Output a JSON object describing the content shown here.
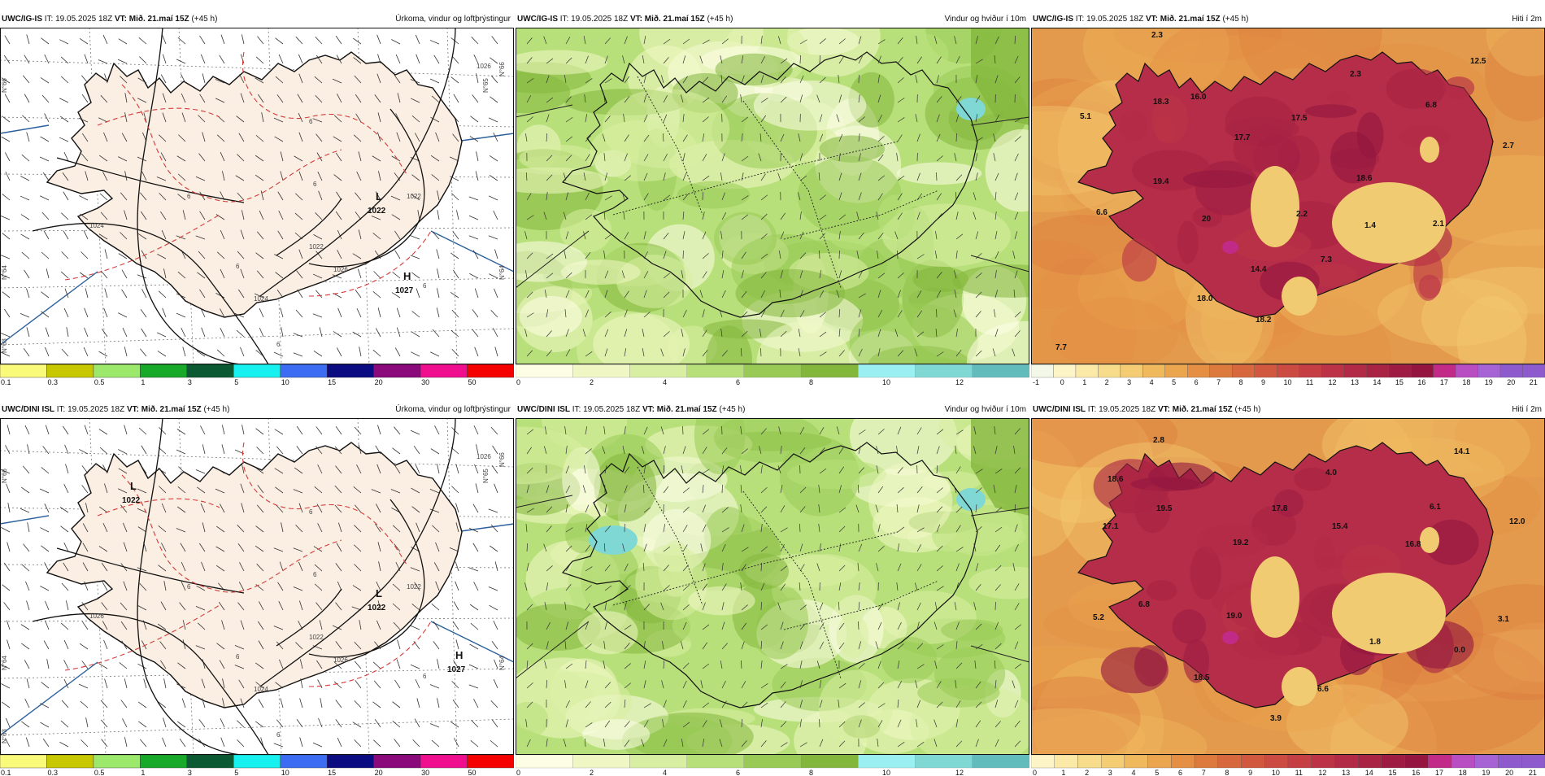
{
  "colors": {
    "land_precip": "#fbeee2",
    "sea": "#ffffff",
    "coast": "#111111",
    "isobar": "#111111",
    "isotherm": "#d33b3b",
    "front": "#2a5f9e"
  },
  "rows": [
    {
      "model": "UWC/IG-IS",
      "it": "IT: 19.05.2025 18Z",
      "vt_label": "VT:",
      "vt": "Mið. 21.maí 15Z",
      "lead": "(+45 h)",
      "precip": {
        "title": "Úrkoma, vindur og loftþrýstingur",
        "isobar_labels": [
          "1026",
          "1024",
          "1024",
          "1026",
          "1022",
          "1022"
        ],
        "isotherm_labels": [
          "6",
          "6",
          "6",
          "6",
          "6",
          "6"
        ],
        "pressure_centers": [
          {
            "type": "L",
            "value": "1022"
          },
          {
            "type": "H",
            "value": "1027"
          }
        ],
        "grid_labels": [
          "N°66",
          "N°64",
          "N°65",
          "N°63",
          "N°64",
          "N°66"
        ]
      },
      "wind": {
        "title": "Vindur og hviður í 10m"
      },
      "temp": {
        "title": "Hiti í 2m",
        "values": [
          "2.3",
          "18.3",
          "16.0",
          "5.1",
          "2.3",
          "17.5",
          "12.5",
          "6.8",
          "17.7",
          "2.7",
          "18.6",
          "19.4",
          "6.6",
          "2.2",
          "20",
          "1.4",
          "2.1",
          "7.3",
          "14.4",
          "18.0",
          "18.2",
          "7.7"
        ]
      }
    },
    {
      "model": "UWC/DINI ISL",
      "it": "IT: 19.05.2025 18Z",
      "vt_label": "VT:",
      "vt": "Mið. 21.maí 15Z",
      "lead": "(+45 h)",
      "precip": {
        "title": "Úrkoma, vindur og loftþrýstingur",
        "isobar_labels": [
          "1026",
          "1026",
          "1024",
          "1026",
          "1022",
          "1022"
        ],
        "isotherm_labels": [
          "6",
          "6",
          "6",
          "6",
          "6",
          "6"
        ],
        "pressure_centers": [
          {
            "type": "L",
            "value": "1022"
          },
          {
            "type": "L",
            "value": "1022"
          },
          {
            "type": "H",
            "value": "1027"
          }
        ],
        "grid_labels": [
          "N°66",
          "N°64",
          "N°65",
          "N°63",
          "N°64",
          "N°66"
        ]
      },
      "wind": {
        "title": "Vindur og hviður í 10m"
      },
      "temp": {
        "title": "Hiti í 2m",
        "values": [
          "2.8",
          "14.1",
          "18.6",
          "4.0",
          "19.5",
          "17.8",
          "6.1",
          "17.1",
          "15.4",
          "12.0",
          "19.2",
          "16.8",
          "5.2",
          "6.8",
          "19.0",
          "3.1",
          "1.8",
          "0.0",
          "18.5",
          "6.6",
          "3.9"
        ]
      }
    }
  ],
  "scales": {
    "precip": {
      "labels": [
        "0.1",
        "0.3",
        "0.5",
        "1",
        "3",
        "5",
        "10",
        "15",
        "20",
        "30",
        "50"
      ],
      "colors": [
        "#fafa7a",
        "#c8c800",
        "#9be86b",
        "#18a82a",
        "#0b5a33",
        "#16f0ee",
        "#3c6cf2",
        "#0b0b82",
        "#8b0a7b",
        "#ef0f8e",
        "#f40000"
      ]
    },
    "wind": {
      "labels": [
        "0",
        "2",
        "4",
        "6",
        "8",
        "10",
        "12"
      ],
      "colors": [
        "#fdfde6",
        "#f0f7c5",
        "#d8eea2",
        "#b8e07a",
        "#99ca55",
        "#83b73c",
        "#9af0f0",
        "#7fd8d4",
        "#62bcbc"
      ]
    },
    "temp_top": {
      "labels": [
        "-1",
        "0",
        "1",
        "2",
        "3",
        "4",
        "5",
        "6",
        "7",
        "8",
        "9",
        "10",
        "11",
        "12",
        "13",
        "14",
        "15",
        "16",
        "17",
        "18",
        "19",
        "20",
        "21"
      ]
    },
    "temp_bottom": {
      "labels": [
        "0",
        "1",
        "2",
        "3",
        "4",
        "5",
        "6",
        "7",
        "8",
        "9",
        "10",
        "11",
        "12",
        "13",
        "14",
        "15",
        "16",
        "17",
        "18",
        "19",
        "20",
        "21"
      ]
    }
  }
}
